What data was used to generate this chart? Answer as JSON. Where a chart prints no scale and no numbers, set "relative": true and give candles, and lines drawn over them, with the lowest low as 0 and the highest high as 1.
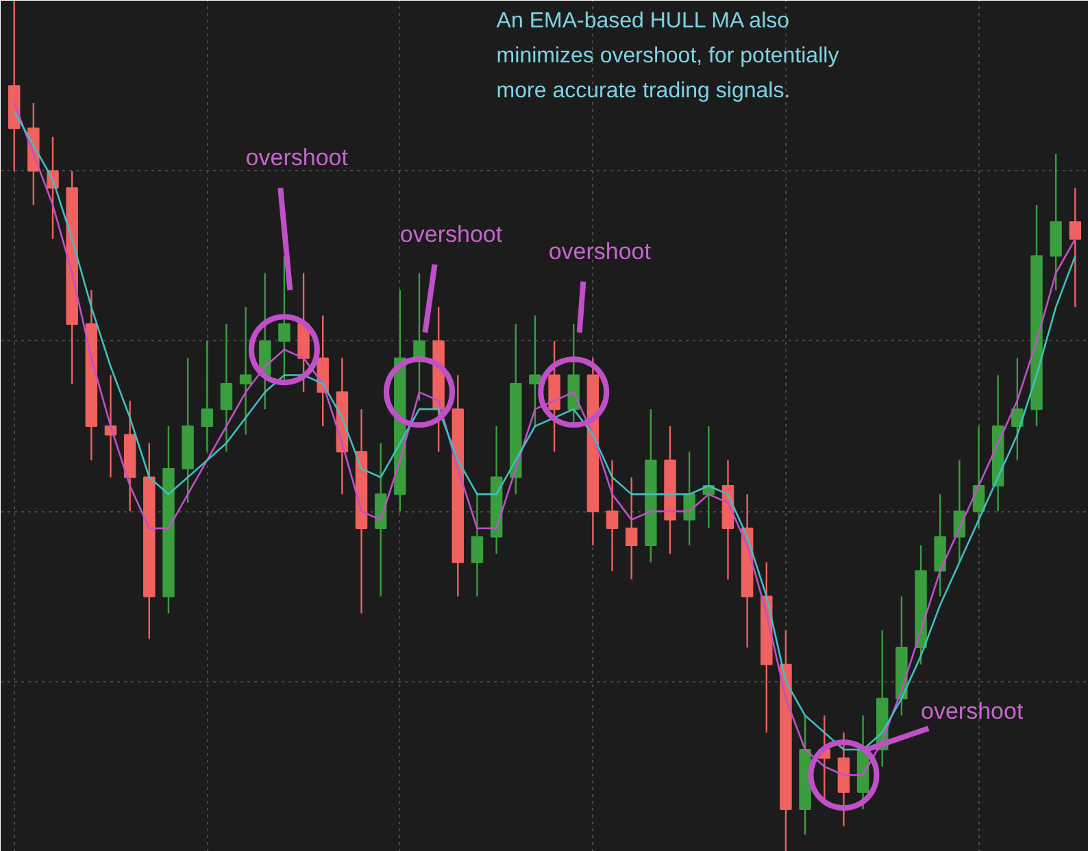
{
  "chart_data": {
    "type": "candlestick",
    "relative": true,
    "grid": true,
    "categories": [
      null,
      null,
      null,
      null,
      null,
      null,
      null,
      null,
      null,
      null,
      null,
      null,
      null,
      null,
      null,
      null,
      null,
      null,
      null,
      null,
      null,
      null,
      null,
      null,
      null,
      null,
      null,
      null,
      null,
      null,
      null,
      null,
      null,
      null,
      null,
      null,
      null,
      null,
      null,
      null,
      null,
      null,
      null,
      null,
      null,
      null,
      null,
      null,
      null,
      null,
      null,
      null,
      null,
      null,
      null,
      null
    ],
    "ohlc": [
      [
        0.9,
        1.0,
        0.8,
        0.85
      ],
      [
        0.85,
        0.88,
        0.76,
        0.8
      ],
      [
        0.8,
        0.84,
        0.72,
        0.78
      ],
      [
        0.78,
        0.8,
        0.55,
        0.62
      ],
      [
        0.62,
        0.66,
        0.46,
        0.5
      ],
      [
        0.5,
        0.56,
        0.44,
        0.49
      ],
      [
        0.49,
        0.53,
        0.4,
        0.44
      ],
      [
        0.44,
        0.48,
        0.25,
        0.3
      ],
      [
        0.3,
        0.5,
        0.28,
        0.45
      ],
      [
        0.45,
        0.58,
        0.41,
        0.5
      ],
      [
        0.5,
        0.6,
        0.47,
        0.52
      ],
      [
        0.52,
        0.62,
        0.47,
        0.55
      ],
      [
        0.55,
        0.64,
        0.49,
        0.56
      ],
      [
        0.56,
        0.68,
        0.52,
        0.6
      ],
      [
        0.6,
        0.7,
        0.55,
        0.62
      ],
      [
        0.62,
        0.68,
        0.54,
        0.58
      ],
      [
        0.58,
        0.63,
        0.5,
        0.54
      ],
      [
        0.54,
        0.58,
        0.42,
        0.47
      ],
      [
        0.47,
        0.52,
        0.28,
        0.38
      ],
      [
        0.38,
        0.48,
        0.3,
        0.42
      ],
      [
        0.42,
        0.66,
        0.4,
        0.58
      ],
      [
        0.58,
        0.68,
        0.53,
        0.6
      ],
      [
        0.6,
        0.64,
        0.47,
        0.52
      ],
      [
        0.52,
        0.56,
        0.3,
        0.34
      ],
      [
        0.34,
        0.42,
        0.3,
        0.37
      ],
      [
        0.37,
        0.5,
        0.35,
        0.44
      ],
      [
        0.44,
        0.62,
        0.42,
        0.55
      ],
      [
        0.55,
        0.63,
        0.5,
        0.56
      ],
      [
        0.56,
        0.6,
        0.47,
        0.52
      ],
      [
        0.52,
        0.62,
        0.5,
        0.56
      ],
      [
        0.56,
        0.58,
        0.36,
        0.4
      ],
      [
        0.4,
        0.46,
        0.33,
        0.38
      ],
      [
        0.38,
        0.44,
        0.32,
        0.36
      ],
      [
        0.36,
        0.52,
        0.34,
        0.46
      ],
      [
        0.46,
        0.5,
        0.35,
        0.39
      ],
      [
        0.39,
        0.47,
        0.36,
        0.42
      ],
      [
        0.42,
        0.5,
        0.38,
        0.43
      ],
      [
        0.43,
        0.46,
        0.32,
        0.38
      ],
      [
        0.38,
        0.42,
        0.24,
        0.3
      ],
      [
        0.3,
        0.34,
        0.14,
        0.22
      ],
      [
        0.22,
        0.26,
        0.0,
        0.05
      ],
      [
        0.05,
        0.16,
        0.02,
        0.12
      ],
      [
        0.12,
        0.16,
        0.06,
        0.11
      ],
      [
        0.11,
        0.14,
        0.03,
        0.07
      ],
      [
        0.07,
        0.16,
        0.05,
        0.12
      ],
      [
        0.12,
        0.26,
        0.1,
        0.18
      ],
      [
        0.18,
        0.3,
        0.16,
        0.24
      ],
      [
        0.24,
        0.36,
        0.22,
        0.33
      ],
      [
        0.33,
        0.42,
        0.3,
        0.37
      ],
      [
        0.37,
        0.46,
        0.34,
        0.4
      ],
      [
        0.4,
        0.5,
        0.38,
        0.43
      ],
      [
        0.43,
        0.56,
        0.4,
        0.5
      ],
      [
        0.5,
        0.58,
        0.46,
        0.52
      ],
      [
        0.52,
        0.76,
        0.5,
        0.7
      ],
      [
        0.7,
        0.82,
        0.66,
        0.74
      ],
      [
        0.74,
        0.78,
        0.64,
        0.72
      ]
    ],
    "colors": [
      "#f0625f",
      "#f0625f",
      "#f0625f",
      "#f0625f",
      "#f0625f",
      "#f0625f",
      "#f0625f",
      "#f0625f",
      "#3a9e3f",
      "#3a9e3f",
      "#3a9e3f",
      "#3a9e3f",
      "#3a9e3f",
      "#3a9e3f",
      "#3a9e3f",
      "#f0625f",
      "#f0625f",
      "#f0625f",
      "#f0625f",
      "#3a9e3f",
      "#3a9e3f",
      "#3a9e3f",
      "#f0625f",
      "#f0625f",
      "#3a9e3f",
      "#3a9e3f",
      "#3a9e3f",
      "#3a9e3f",
      "#f0625f",
      "#3a9e3f",
      "#f0625f",
      "#f0625f",
      "#f0625f",
      "#3a9e3f",
      "#f0625f",
      "#3a9e3f",
      "#3a9e3f",
      "#f0625f",
      "#f0625f",
      "#f0625f",
      "#f0625f",
      "#3a9e3f",
      "#f0625f",
      "#f0625f",
      "#3a9e3f",
      "#3a9e3f",
      "#3a9e3f",
      "#3a9e3f",
      "#3a9e3f",
      "#3a9e3f",
      "#3a9e3f",
      "#3a9e3f",
      "#3a9e3f",
      "#3a9e3f",
      "#3a9e3f",
      "#f0625f"
    ],
    "series": [
      {
        "type": "line",
        "color": "#c050c8",
        "values": [
          0.88,
          0.82,
          0.76,
          0.68,
          0.58,
          0.5,
          0.43,
          0.38,
          0.38,
          0.42,
          0.46,
          0.5,
          0.54,
          0.57,
          0.59,
          0.58,
          0.55,
          0.48,
          0.4,
          0.39,
          0.46,
          0.54,
          0.53,
          0.45,
          0.38,
          0.38,
          0.45,
          0.52,
          0.53,
          0.54,
          0.49,
          0.42,
          0.39,
          0.4,
          0.4,
          0.4,
          0.42,
          0.41,
          0.36,
          0.28,
          0.18,
          0.12,
          0.1,
          0.09,
          0.09,
          0.13,
          0.19,
          0.26,
          0.33,
          0.38,
          0.43,
          0.48,
          0.53,
          0.6,
          0.68,
          0.72
        ]
      },
      {
        "type": "line",
        "color": "#40c0c0",
        "values": [
          0.87,
          0.83,
          0.79,
          0.72,
          0.64,
          0.57,
          0.51,
          0.44,
          0.42,
          0.44,
          0.46,
          0.48,
          0.51,
          0.54,
          0.56,
          0.56,
          0.55,
          0.51,
          0.45,
          0.44,
          0.48,
          0.52,
          0.52,
          0.46,
          0.42,
          0.42,
          0.46,
          0.5,
          0.51,
          0.52,
          0.49,
          0.44,
          0.42,
          0.42,
          0.42,
          0.42,
          0.43,
          0.42,
          0.37,
          0.3,
          0.2,
          0.16,
          0.14,
          0.12,
          0.12,
          0.14,
          0.18,
          0.23,
          0.29,
          0.34,
          0.39,
          0.44,
          0.49,
          0.56,
          0.64,
          0.7
        ]
      }
    ],
    "annotations": [
      "An EMA-based HULL MA also\nminimizes overshoot, for potentially\nmore accurate trading signals.",
      "overshoot",
      "overshoot",
      "overshoot",
      "overshoot"
    ]
  }
}
